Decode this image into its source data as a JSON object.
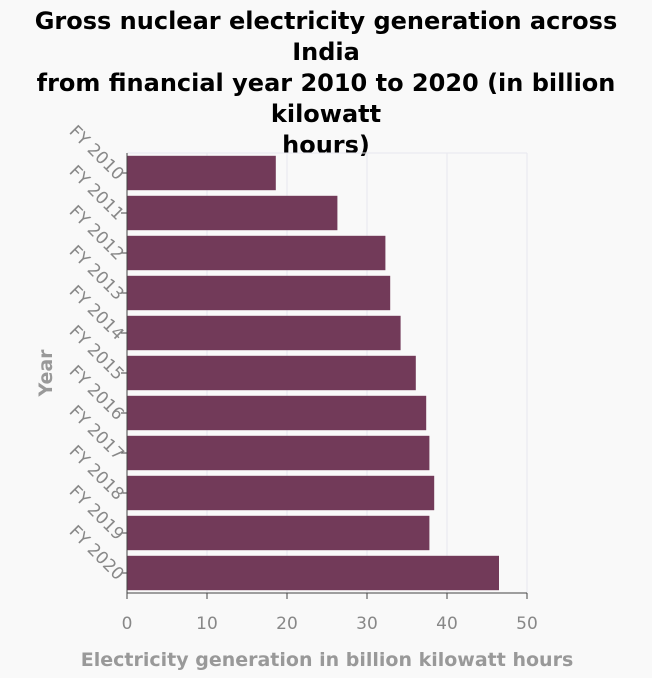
{
  "chart_data": {
    "type": "bar",
    "orientation": "horizontal",
    "title": "Gross nuclear electricity generation across India from financial year 2010 to 2020 (in billion kilowatt hours)",
    "xlabel": "Electricity generation in billion kilowatt hours",
    "ylabel": "Year",
    "categories": [
      "FY 2010",
      "FY 2011",
      "FY 2012",
      "FY 2013",
      "FY 2014",
      "FY 2015",
      "FY 2016",
      "FY 2017",
      "FY 2018",
      "FY 2019",
      "FY 2020"
    ],
    "values": [
      18.6,
      26.3,
      32.3,
      32.9,
      34.2,
      36.1,
      37.4,
      37.8,
      38.4,
      37.8,
      46.5
    ],
    "xlim": [
      0,
      50
    ],
    "xticks": [
      0,
      10,
      20,
      30,
      40,
      50
    ],
    "grid": true,
    "bar_color": "#723a59"
  }
}
